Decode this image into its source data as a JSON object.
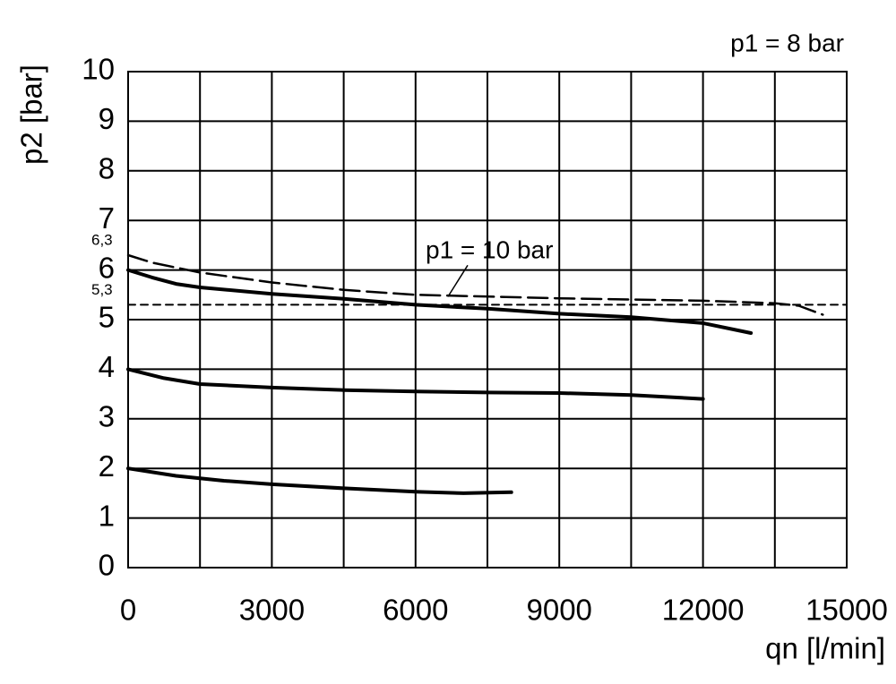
{
  "chart_data": {
    "type": "line",
    "subtitle": "p1 = 8 bar",
    "x_label": "qn [l/min]",
    "y_label": "p2 [bar]",
    "xlim": [
      0,
      15000
    ],
    "ylim": [
      0,
      10
    ],
    "xticks": [
      0,
      3000,
      6000,
      9000,
      12000,
      15000
    ],
    "x_minor_ticks": [
      1500,
      4500,
      7500,
      10500,
      13500
    ],
    "yticks": [
      0,
      1,
      2,
      3,
      4,
      5,
      6,
      7,
      8,
      9,
      10
    ],
    "grid": true,
    "annotations": [
      {
        "value": 6.3,
        "label": "6,3"
      },
      {
        "value": 5.3,
        "label": "5,3"
      }
    ],
    "series": [
      {
        "style": "solid",
        "color": "#000000",
        "x": [
          0,
          500,
          1000,
          1500,
          3000,
          4500,
          6000,
          7500,
          9000,
          10500,
          12000,
          13000
        ],
        "values": [
          6,
          5.85,
          5.72,
          5.65,
          5.52,
          5.42,
          5.3,
          5.22,
          5.12,
          5.05,
          4.93,
          4.73
        ]
      },
      {
        "style": "solid",
        "color": "#000000",
        "x": [
          0,
          750,
          1500,
          3000,
          4500,
          6000,
          7500,
          9000,
          10500,
          12000
        ],
        "values": [
          4,
          3.82,
          3.7,
          3.63,
          3.58,
          3.55,
          3.53,
          3.52,
          3.48,
          3.4
        ]
      },
      {
        "style": "solid",
        "color": "#000000",
        "x": [
          0,
          1000,
          2000,
          3000,
          4500,
          6000,
          7000,
          8000
        ],
        "values": [
          2,
          1.85,
          1.75,
          1.68,
          1.6,
          1.53,
          1.5,
          1.52
        ]
      },
      {
        "name": "p1 = 10 bar",
        "style": "dashed",
        "color": "#000000",
        "x": [
          0,
          500,
          1500,
          3000,
          4500,
          6000,
          9000,
          12000,
          13500,
          14000,
          14500
        ],
        "values": [
          6.3,
          6.15,
          5.95,
          5.75,
          5.6,
          5.5,
          5.43,
          5.38,
          5.33,
          5.28,
          5.1
        ]
      },
      {
        "style": "dotted",
        "color": "#000000",
        "x": [
          0,
          15000
        ],
        "values": [
          5.3,
          5.3
        ]
      }
    ]
  }
}
